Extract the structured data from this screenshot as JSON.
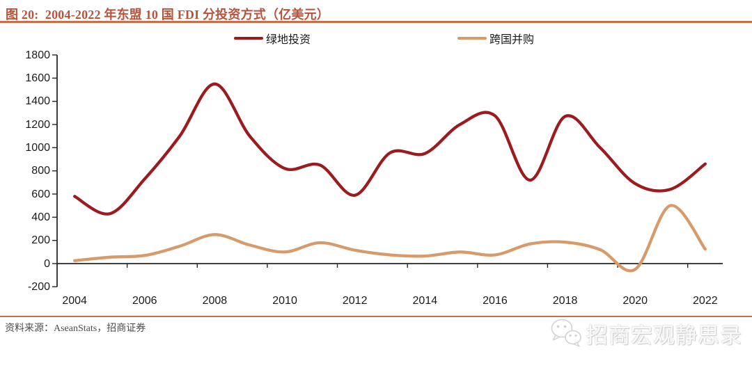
{
  "header": {
    "title": "图 20:  2004-2022 年东盟 10 国 FDI 分投资方式（亿美元）"
  },
  "footer": {
    "source": "资料来源：AseanStats，招商证券",
    "watermark": "招商宏观静思录"
  },
  "colors": {
    "accent_rule": "#C4704F",
    "title_text": "#B5533C",
    "axis": "#262626",
    "greenfield_line": "#9B1B1E",
    "ma_line": "#D79A6B",
    "source_text": "#4d4d4d",
    "watermark_text": "#fafafa"
  },
  "chart_data": {
    "type": "line",
    "smoothed": true,
    "grid": false,
    "legend_position": "top",
    "title": "图 20: 2004-2022 年东盟 10 国 FDI 分投资方式（亿美元）",
    "xlabel": "",
    "ylabel": "",
    "ylim": [
      -200,
      1800
    ],
    "y_ticks": [
      1800,
      1600,
      1400,
      1200,
      1000,
      800,
      600,
      400,
      200,
      0,
      -200
    ],
    "categories": [
      "2004",
      "2005",
      "2006",
      "2007",
      "2008",
      "2009",
      "2010",
      "2011",
      "2012",
      "2013",
      "2014",
      "2015",
      "2016",
      "2017",
      "2018",
      "2019",
      "2020",
      "2021",
      "2022"
    ],
    "x_tick_labels": [
      "2004",
      "2006",
      "2008",
      "2010",
      "2012",
      "2014",
      "2016",
      "2018",
      "2020",
      "2022"
    ],
    "axis_color": "#262626",
    "series": [
      {
        "name": "绿地投资",
        "color": "#9B1B1E",
        "values": [
          580,
          430,
          730,
          1100,
          1550,
          1100,
          820,
          850,
          590,
          955,
          950,
          1200,
          1275,
          720,
          1270,
          1000,
          690,
          640,
          860
        ]
      },
      {
        "name": "跨国并购",
        "color": "#D79A6B",
        "values": [
          25,
          55,
          70,
          150,
          250,
          160,
          100,
          180,
          115,
          75,
          65,
          100,
          75,
          170,
          185,
          120,
          -50,
          500,
          125
        ]
      }
    ]
  }
}
